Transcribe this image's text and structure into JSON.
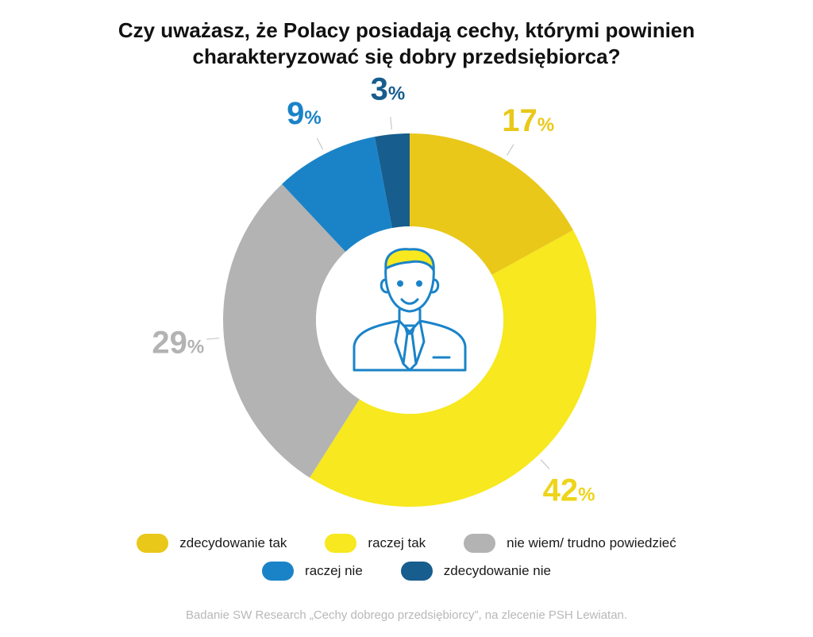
{
  "title_lines": [
    "Czy uważasz, że Polacy posiadają cechy, którymi powinien",
    "charakteryzować się dobry przedsiębiorca?"
  ],
  "chart_data": {
    "type": "pie",
    "donut": true,
    "title": "Czy uważasz, że Polacy posiadają cechy, którymi powinien charakteryzować się dobry przedsiębiorca?",
    "unit": "%",
    "slices": [
      {
        "label": "zdecydowanie tak",
        "value": 17,
        "color": "#E9C81A",
        "label_color": "#E9C81A"
      },
      {
        "label": "raczej tak",
        "value": 42,
        "color": "#F7E81F",
        "label_color": "#EED41A"
      },
      {
        "label": "nie wiem/ trudno powiedzieć",
        "value": 29,
        "color": "#B3B3B3",
        "label_color": "#B3B3B3"
      },
      {
        "label": "raczej nie",
        "value": 9,
        "color": "#1A83C8",
        "label_color": "#1A83C8"
      },
      {
        "label": "zdecydowanie nie",
        "value": 3,
        "color": "#175D8E",
        "label_color": "#175D8E"
      }
    ],
    "center_icon": "businessman-icon",
    "legend_position": "bottom"
  },
  "footer": "Badanie SW Research „Cechy dobrego przedsiębiorcy”, na zlecenie PSH Lewiatan."
}
